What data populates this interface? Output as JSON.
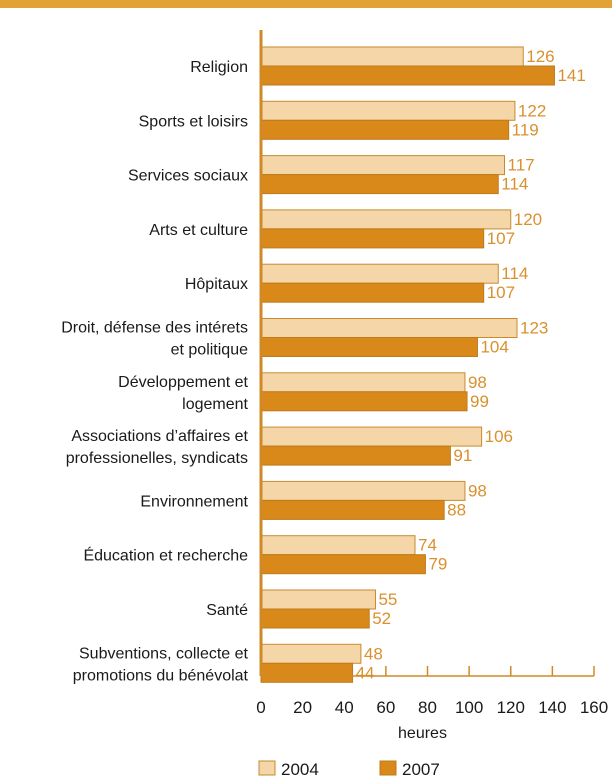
{
  "chart_data": {
    "type": "bar",
    "orientation": "horizontal",
    "title": "",
    "xlabel": "heures",
    "ylabel": "",
    "xlim": [
      0,
      160
    ],
    "xticks": [
      0,
      20,
      40,
      60,
      80,
      100,
      120,
      140,
      160
    ],
    "grid": false,
    "legend_position": "bottom",
    "categories": [
      [
        "Religion"
      ],
      [
        "Sports et loisirs"
      ],
      [
        "Services sociaux"
      ],
      [
        "Arts et culture"
      ],
      [
        "Hôpitaux"
      ],
      [
        "Droit, défense des intérets",
        "et politique"
      ],
      [
        "Développement et",
        "logement"
      ],
      [
        "Associations d’affaires et",
        "professionelles, syndicats"
      ],
      [
        "Environnement"
      ],
      [
        "Éducation et recherche"
      ],
      [
        "Santé"
      ],
      [
        "Subventions, collecte et",
        "promotions du bénévolat"
      ]
    ],
    "series": [
      {
        "name": "2004",
        "color": "#f5d6a8",
        "stroke": "#c98a2e",
        "values": [
          126,
          122,
          117,
          120,
          114,
          123,
          98,
          106,
          98,
          74,
          55,
          48
        ]
      },
      {
        "name": "2007",
        "color": "#d9891a",
        "stroke": "#c07a1a",
        "values": [
          141,
          119,
          114,
          107,
          107,
          104,
          99,
          91,
          88,
          79,
          52,
          44
        ]
      }
    ],
    "colors": {
      "accent": "#e1a336",
      "axis": "#d08a25",
      "value_label": "#d9902e"
    }
  }
}
